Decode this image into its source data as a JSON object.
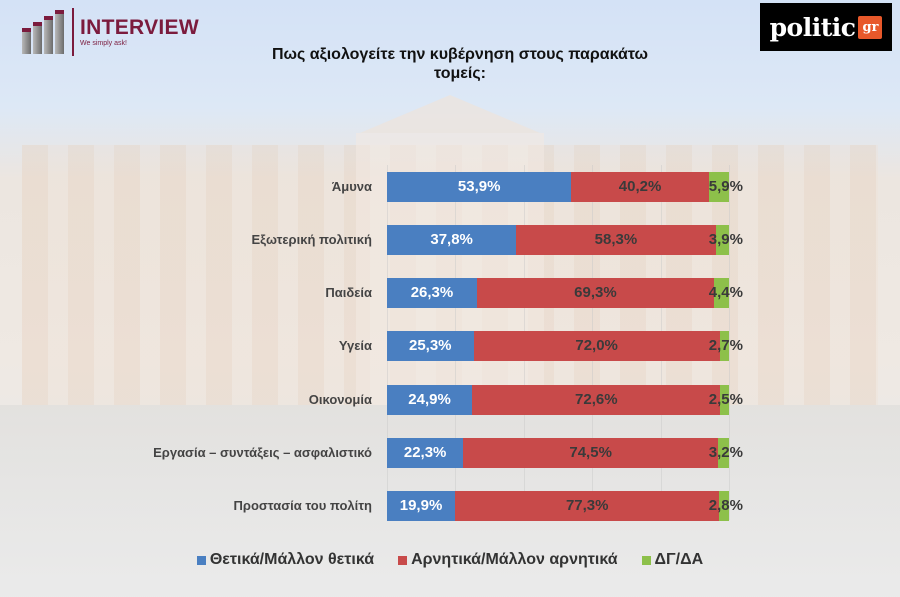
{
  "header": {
    "interview_logo": {
      "title": "INTERVIEW",
      "tagline": "We simply ask!",
      "color": "#7b1b3d"
    },
    "politic_logo": {
      "word": "politic",
      "suffix": "gr",
      "accent": "#e8582a"
    }
  },
  "colors": {
    "positive": "#4a7fc1",
    "negative": "#c84a4a",
    "dont_know": "#8dc04a"
  },
  "chart_data": {
    "type": "bar",
    "orientation": "horizontal",
    "stacked": true,
    "title": "Πως αξιολογείτε την κυβέρνηση στους παρακάτω τομείς:",
    "title_lines": [
      "Πως αξιολογείτε την κυβέρνηση στους παρακάτω",
      "τομείς:"
    ],
    "xlabel": "",
    "ylabel": "",
    "xlim": [
      0,
      100
    ],
    "grid": true,
    "legend_position": "bottom",
    "categories": [
      "Άμυνα",
      "Εξωτερική πολιτική",
      "Παιδεία",
      "Υγεία",
      "Οικονομία",
      "Εργασία – συντάξεις – ασφαλιστικό",
      "Προστασία του πολίτη"
    ],
    "series": [
      {
        "name": "Θετικά/Μάλλον θετικά",
        "color": "#4a7fc1",
        "values": [
          53.9,
          37.8,
          26.3,
          25.3,
          24.9,
          22.3,
          19.9
        ],
        "labels": [
          "53,9%",
          "37,8%",
          "26,3%",
          "25,3%",
          "24,9%",
          "22,3%",
          "19,9%"
        ]
      },
      {
        "name": "Αρνητικά/Μάλλον αρνητικά",
        "color": "#c84a4a",
        "values": [
          40.2,
          58.3,
          69.3,
          72.0,
          72.6,
          74.5,
          77.3
        ],
        "labels": [
          "40,2%",
          "58,3%",
          "69,3%",
          "72,0%",
          "72,6%",
          "74,5%",
          "77,3%"
        ]
      },
      {
        "name": "ΔΓ/ΔΑ",
        "color": "#8dc04a",
        "values": [
          5.9,
          3.9,
          4.4,
          2.7,
          2.5,
          3.2,
          2.8
        ],
        "labels": [
          "5,9%",
          "3,9%",
          "4,4%",
          "2,7%",
          "2,5%",
          "3,2%",
          "2,8%"
        ]
      }
    ]
  }
}
